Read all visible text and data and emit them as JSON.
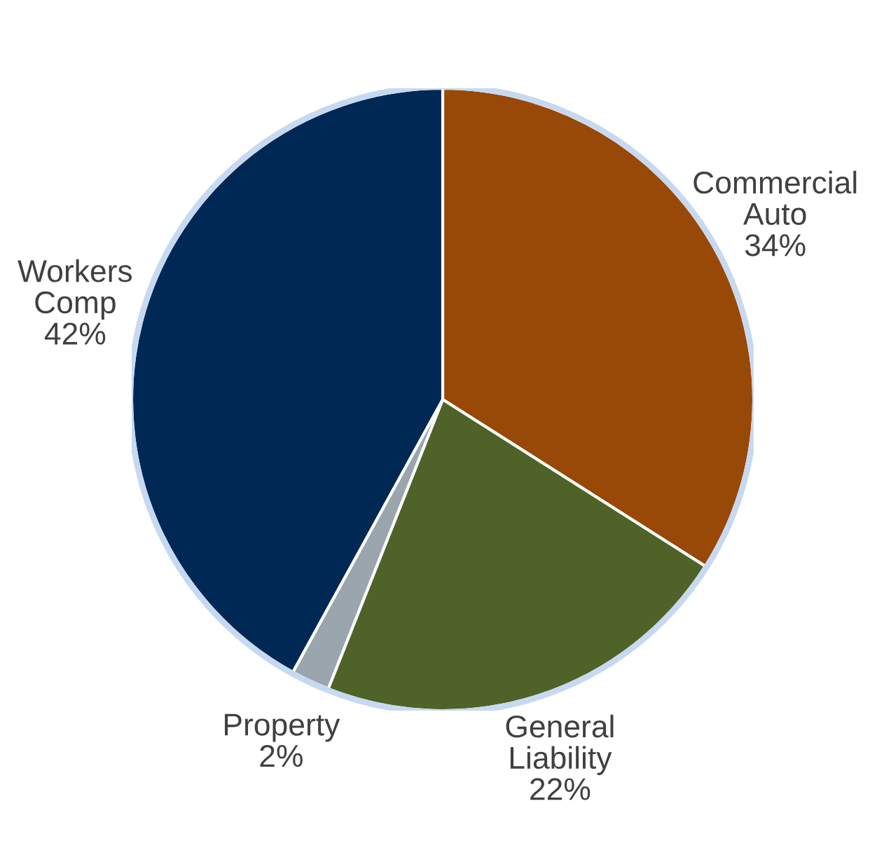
{
  "chart_data": {
    "type": "pie",
    "categories": [
      "Commercial Auto",
      "General Liability",
      "Property",
      "Workers Comp"
    ],
    "values": [
      34,
      22,
      2,
      42
    ],
    "colors": [
      "#984807",
      "#4f6228",
      "#9aa5ad",
      "#002855"
    ],
    "value_labels": [
      "34%",
      "22%",
      "2%",
      "42%"
    ],
    "legend": false
  }
}
